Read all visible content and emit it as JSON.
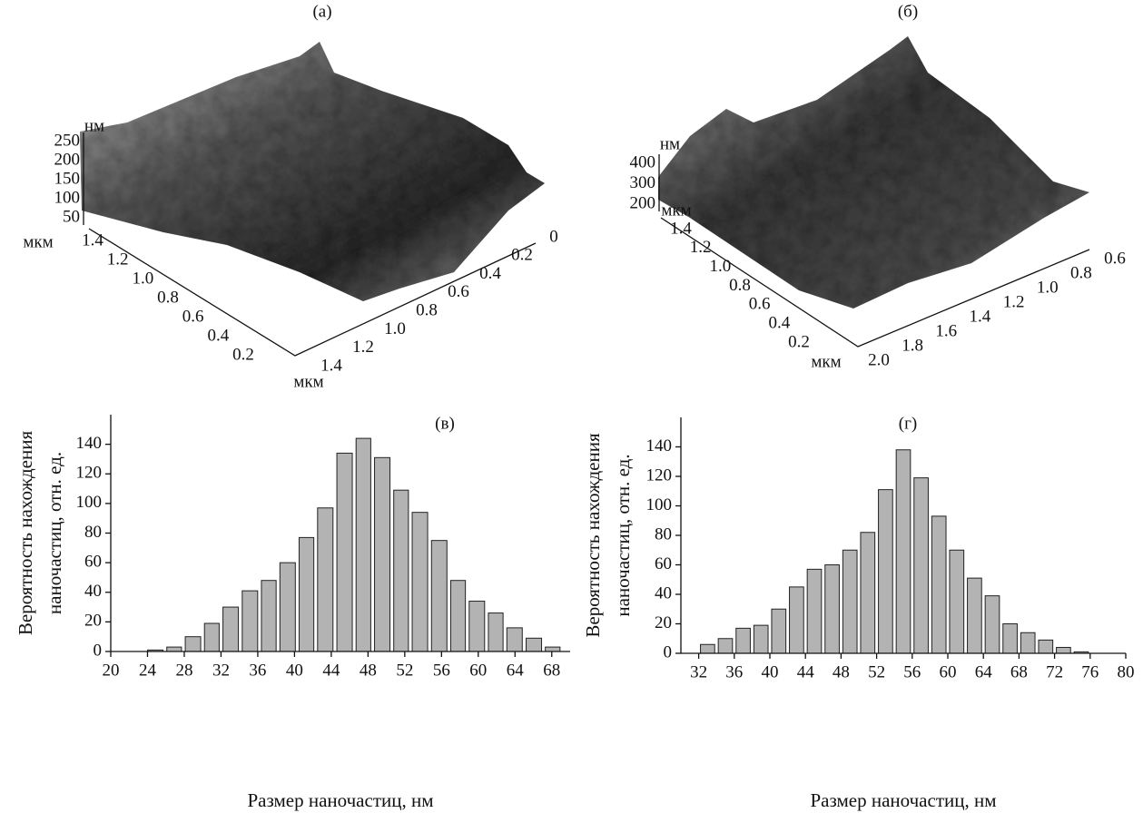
{
  "chart_data": [
    {
      "type": "surface",
      "title": "(а)",
      "z_label": "нм",
      "zticks": [
        50,
        100,
        150,
        200,
        250
      ],
      "y_label": "мкм",
      "yticks": [
        1.4,
        1.2,
        {
          "value": 1,
          "label": "1.0"
        },
        0.8,
        0.6,
        0.4,
        0.2
      ],
      "x_label": "мкм",
      "xticks": [
        1.4,
        1.2,
        {
          "value": 1,
          "label": "1.0"
        },
        0.8,
        0.6,
        0.4,
        0.2,
        0
      ]
    },
    {
      "type": "surface",
      "title": "(б)",
      "z_label": "нм",
      "zticks": [
        200,
        300,
        400
      ],
      "y_label": "мкм",
      "yticks": [
        1.4,
        1.2,
        {
          "value": 1,
          "label": "1.0"
        },
        0.8,
        0.6,
        0.4,
        0.2
      ],
      "x_label": "мкм",
      "xticks": [
        {
          "value": 2,
          "label": "2.0"
        },
        1.8,
        1.6,
        1.4,
        1.2,
        {
          "value": 1,
          "label": "1.0"
        },
        0.8,
        0.6
      ]
    },
    {
      "type": "histogram",
      "title": "(в)",
      "x_label": "Размер наночастиц, нм",
      "y_label": [
        "Вероятность нахождения",
        "наночастиц, отн. ед."
      ],
      "bins": [
        23.8,
        25.9,
        27.9,
        30.0,
        32.0,
        34.1,
        36.2,
        38.2,
        40.3,
        42.3,
        44.4,
        46.5,
        48.5,
        50.6,
        52.6,
        54.7,
        56.8,
        58.8,
        60.9,
        62.9,
        65.0,
        67.1,
        69.1
      ],
      "values": [
        1,
        3,
        10,
        19,
        30,
        41,
        48,
        60,
        77,
        97,
        134,
        144,
        131,
        109,
        94,
        75,
        48,
        34,
        26,
        16,
        9,
        3
      ],
      "color": "#b3b3b3",
      "xlim": [
        20,
        70
      ],
      "xticks": [
        20,
        24,
        28,
        32,
        36,
        40,
        44,
        48,
        52,
        56,
        60,
        64,
        68
      ],
      "ylim": [
        0,
        160
      ],
      "yticks": [
        0,
        20,
        40,
        60,
        80,
        100,
        120,
        140
      ]
    },
    {
      "type": "histogram",
      "title": "(г)",
      "x_label": "Размер наночастиц, нм",
      "y_label": [
        "Вероятность нахождения",
        "наночастиц, отн. ед."
      ],
      "bins": [
        32,
        34,
        36,
        38,
        40,
        42,
        44,
        46,
        48,
        50,
        52,
        54,
        56,
        58,
        60,
        62,
        64,
        66,
        68,
        70,
        72,
        74,
        76
      ],
      "values": [
        6,
        10,
        17,
        19,
        30,
        45,
        57,
        60,
        70,
        82,
        111,
        138,
        119,
        93,
        70,
        51,
        39,
        20,
        14,
        9,
        4,
        1
      ],
      "color": "#b3b3b3",
      "xlim": [
        30,
        80
      ],
      "xticks": [
        32,
        36,
        40,
        44,
        48,
        52,
        56,
        60,
        64,
        68,
        72,
        76,
        80
      ],
      "ylim": [
        0,
        160
      ],
      "yticks": [
        0,
        20,
        40,
        60,
        80,
        100,
        120,
        140
      ]
    }
  ]
}
